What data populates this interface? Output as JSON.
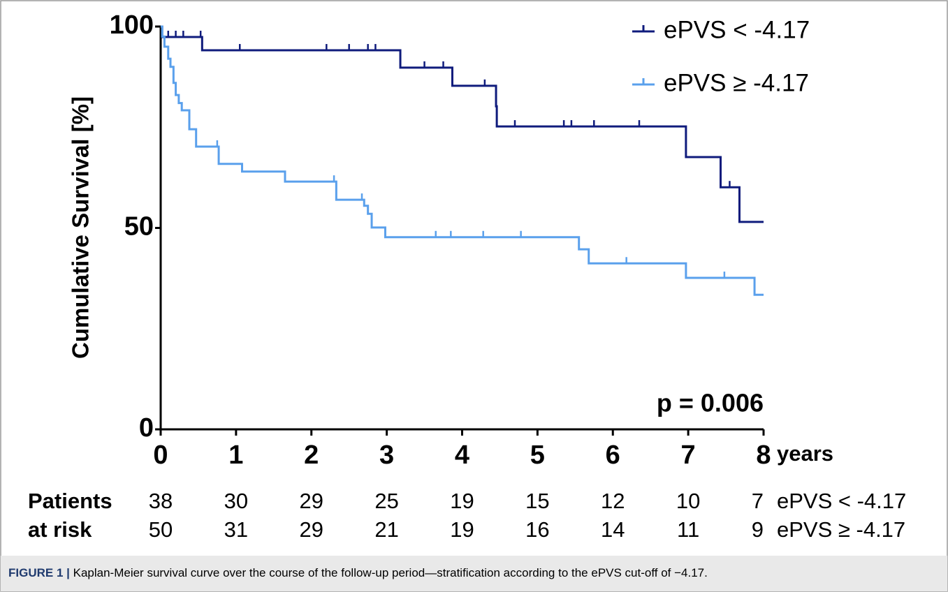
{
  "chart_data": {
    "type": "step",
    "y_label": "Cumulative Survival [%]",
    "x_unit_label": "years",
    "annotation": "p = 0.006",
    "xlim": [
      0,
      8
    ],
    "xticks": [
      0,
      1,
      2,
      3,
      4,
      5,
      6,
      7,
      8
    ],
    "ylim": [
      0,
      100
    ],
    "yticks": [
      0,
      50,
      100
    ],
    "legend": "top-right",
    "series": [
      {
        "name": "ePVS < -4.17",
        "color": "#0f1b7c",
        "x": [
          0,
          0.02,
          0.55,
          3.18,
          3.87,
          4.45,
          4.46,
          6.97,
          7.43,
          7.68,
          8
        ],
        "values": [
          100,
          97.4,
          94.1,
          89.8,
          85.3,
          80.2,
          75.2,
          67.6,
          60.1,
          51.5,
          51.5
        ],
        "censored": {
          "x": [
            0.1,
            0.2,
            0.3,
            0.53,
            1.05,
            2.2,
            2.5,
            2.75,
            2.85,
            3.5,
            3.75,
            4.3,
            4.7,
            5.35,
            5.45,
            5.75,
            6.35,
            7.55
          ],
          "values": [
            97.4,
            97.4,
            97.4,
            97.4,
            94.1,
            94.1,
            94.1,
            94.1,
            94.1,
            89.8,
            89.8,
            85.3,
            75.2,
            75.2,
            75.2,
            75.2,
            75.2,
            60.1
          ]
        }
      },
      {
        "name": "ePVS ≥ -4.17",
        "color": "#5aa0ec",
        "x": [
          0,
          0.02,
          0.05,
          0.1,
          0.13,
          0.17,
          0.2,
          0.24,
          0.28,
          0.38,
          0.47,
          0.77,
          1.08,
          1.65,
          2.33,
          2.7,
          2.75,
          2.8,
          2.98,
          5.55,
          5.68,
          6.97,
          7.88,
          8
        ],
        "values": [
          100,
          97.5,
          95,
          92,
          90,
          86,
          83,
          81,
          79.2,
          74.5,
          70.2,
          65.9,
          64,
          61.5,
          57,
          55.5,
          53.5,
          50.1,
          47.7,
          44.7,
          41.2,
          37.6,
          33.4,
          33.4
        ],
        "censored": {
          "x": [
            0.75,
            2.3,
            2.67,
            3.65,
            3.85,
            4.28,
            4.78,
            6.18,
            7.48
          ],
          "values": [
            70.2,
            61.5,
            57,
            47.7,
            47.7,
            47.7,
            47.7,
            41.2,
            37.6
          ]
        }
      }
    ],
    "risk_table": {
      "header": [
        "Patients",
        "at risk"
      ],
      "rows": [
        [
          38,
          30,
          29,
          25,
          19,
          15,
          12,
          10,
          7
        ],
        [
          50,
          31,
          29,
          21,
          19,
          16,
          14,
          11,
          9
        ]
      ]
    }
  },
  "caption": {
    "label": "FIGURE 1 |",
    "text": " Kaplan-Meier survival curve over the course of the follow-up period—stratification according to the ePVS cut-off of −4.17."
  }
}
